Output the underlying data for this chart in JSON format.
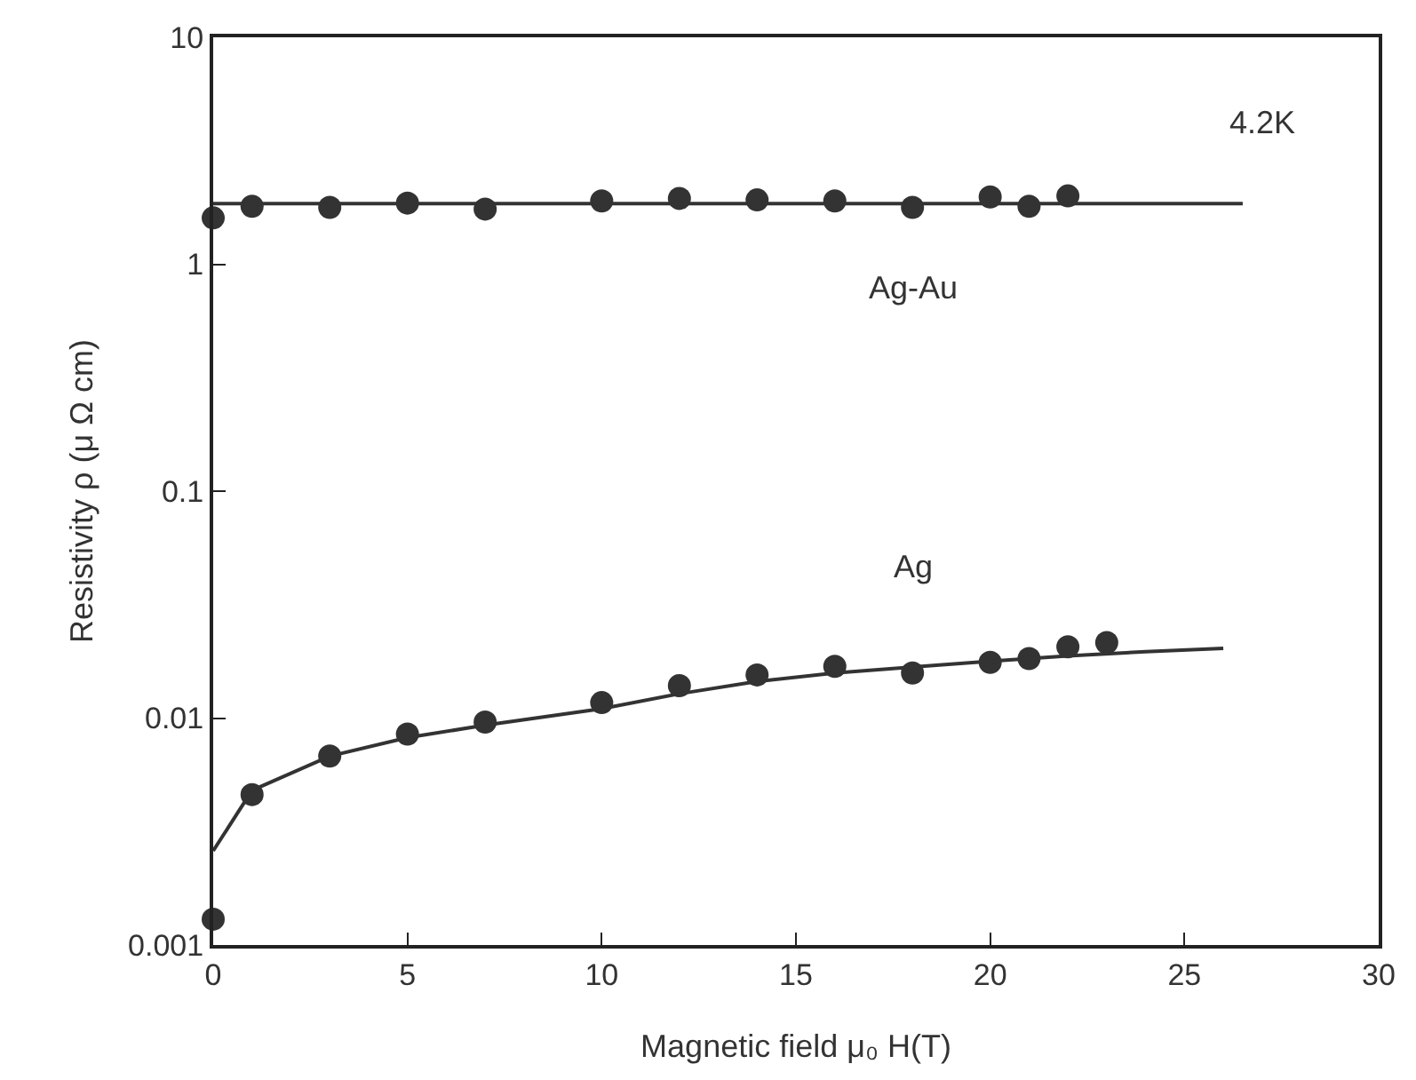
{
  "chart_data": {
    "type": "scatter",
    "xlabel": "Magnetic field μ₀ H(T)",
    "ylabel": "Resistivity ρ (μ Ω cm)",
    "log": "y",
    "grid": false,
    "legend": false,
    "marker": "circle",
    "xlim": [
      0,
      30
    ],
    "xticks": [
      0,
      5,
      10,
      15,
      20,
      25,
      30
    ],
    "ylim": [
      0.001,
      10
    ],
    "yticks": [
      0.001,
      0.01,
      0.1,
      1,
      10
    ],
    "series": [
      {
        "name": "Ag-Au",
        "color": "#333333",
        "x": [
          0,
          1,
          3,
          5,
          7,
          10,
          12,
          14,
          16,
          18,
          20,
          21,
          22
        ],
        "values": [
          1.6,
          1.8,
          1.78,
          1.86,
          1.75,
          1.9,
          1.95,
          1.92,
          1.9,
          1.78,
          1.98,
          1.8,
          2.0
        ]
      },
      {
        "type": "line",
        "marker": "none",
        "color": "#333333",
        "x": [
          0,
          26.5
        ],
        "values": [
          1.85,
          1.85
        ]
      },
      {
        "name": "Ag",
        "color": "#333333",
        "x": [
          0,
          1,
          3,
          5,
          7,
          10,
          12,
          14,
          16,
          18,
          20,
          21,
          22,
          23
        ],
        "values": [
          0.0013,
          0.0046,
          0.0068,
          0.0085,
          0.0096,
          0.0117,
          0.0139,
          0.0155,
          0.0169,
          0.0158,
          0.0176,
          0.0183,
          0.0206,
          0.0215
        ]
      },
      {
        "type": "line",
        "marker": "none",
        "color": "#333333",
        "x": [
          0,
          1,
          3,
          5,
          7,
          10,
          12,
          14,
          16,
          18,
          20,
          22,
          24,
          26
        ],
        "values": [
          0.0026,
          0.0048,
          0.0068,
          0.0082,
          0.0093,
          0.011,
          0.0128,
          0.0145,
          0.0158,
          0.0168,
          0.0178,
          0.0188,
          0.0196,
          0.0203
        ]
      }
    ],
    "annotations": [
      "4.2K"
    ]
  }
}
